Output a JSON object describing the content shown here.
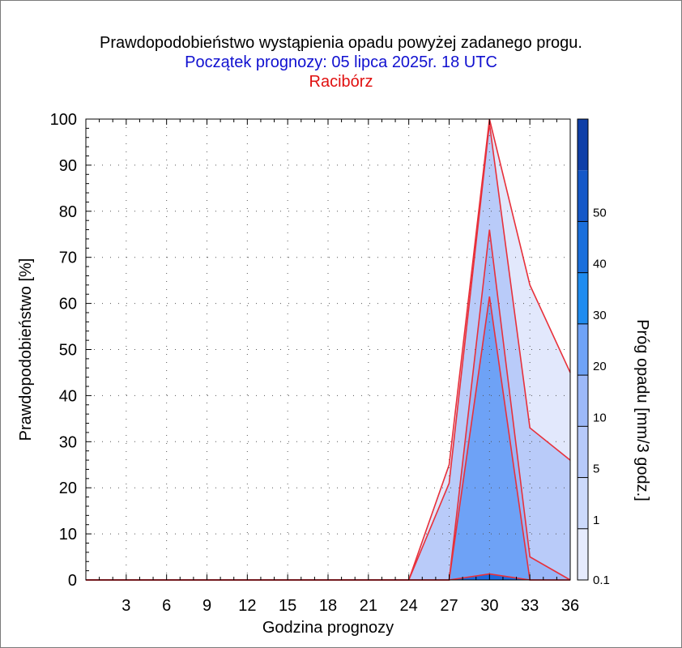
{
  "header": {
    "title": "Prawdopodobieństwo wystąpienia opadu powyżej zadanego progu.",
    "subtitle": "Początek prognozy: 05 lipca 2025r. 18 UTC",
    "location": "Racibórz"
  },
  "chart_data": {
    "type": "area",
    "title": "Prawdopodobieństwo wystąpienia opadu powyżej zadanego progu.",
    "subtitle": "Początek prognozy: 05 lipca 2025r. 18 UTC",
    "location": "Racibórz",
    "xlabel": "Godzina prognozy",
    "ylabel": "Prawdopodobieństwo [%]",
    "colorbar_label": "Próg opadu [mm/3 godz.]",
    "x": [
      0,
      3,
      6,
      9,
      12,
      15,
      18,
      21,
      24,
      27,
      30,
      33,
      36
    ],
    "xticks": [
      "3",
      "6",
      "9",
      "12",
      "15",
      "18",
      "21",
      "24",
      "27",
      "30",
      "33",
      "36"
    ],
    "yticks": [
      "0",
      "10",
      "20",
      "30",
      "40",
      "50",
      "60",
      "70",
      "80",
      "90",
      "100"
    ],
    "xlim": [
      0,
      36
    ],
    "ylim": [
      0,
      100
    ],
    "grid": true,
    "series": [
      {
        "name": "0.1",
        "values": [
          0,
          0,
          0,
          0,
          0,
          0,
          0,
          0,
          0,
          25,
          100,
          64,
          45
        ]
      },
      {
        "name": "1",
        "values": [
          0,
          0,
          0,
          0,
          0,
          0,
          0,
          0,
          0,
          21,
          99,
          33,
          26
        ]
      },
      {
        "name": "5",
        "values": [
          0,
          0,
          0,
          0,
          0,
          0,
          0,
          0,
          0,
          0,
          76,
          5,
          0
        ]
      },
      {
        "name": "10",
        "values": [
          0,
          0,
          0,
          0,
          0,
          0,
          0,
          0,
          0,
          0,
          61.5,
          0,
          0
        ]
      },
      {
        "name": "20",
        "values": [
          0,
          0,
          0,
          0,
          0,
          0,
          0,
          0,
          0,
          0,
          1.3,
          0,
          0
        ]
      }
    ],
    "colorbar": {
      "levels": [
        "0.1",
        "1",
        "5",
        "10",
        "20",
        "30",
        "40",
        "50"
      ],
      "colors": [
        "#e6ebfd",
        "#ccd9fb",
        "#b6c9fa",
        "#9cb8f8",
        "#6fa3f7",
        "#1f8cf0",
        "#1a6fdc",
        "#1558c8",
        "#0f3fa8"
      ]
    },
    "fill_colors": [
      "#e2e8fc",
      "#b9cbf9",
      "#9ab7f8",
      "#6ea2f6",
      "#1c6ae0"
    ],
    "line_color": "#e8303a"
  }
}
